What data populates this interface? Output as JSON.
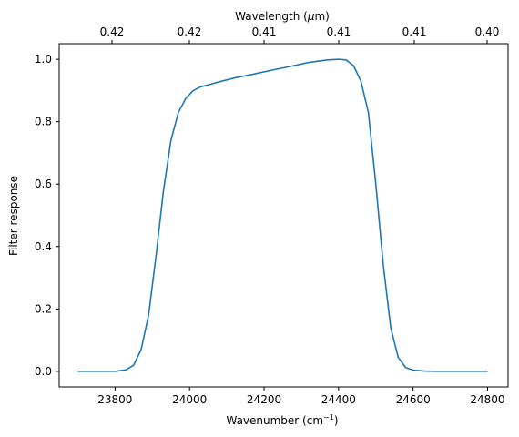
{
  "chart_data": {
    "type": "line",
    "xlabel_base": "Wavenumber (cm",
    "xlabel_sup": "−1",
    "xlabel_end": ")",
    "ylabel": "Filter response",
    "top_xlabel_base": "Wavelength (",
    "top_xlabel_mu": "μ",
    "top_xlabel_end": "m)",
    "xlim": [
      23650,
      24855
    ],
    "ylim": [
      -0.05,
      1.05
    ],
    "x_ticks": [
      23800,
      24000,
      24200,
      24400,
      24600,
      24800
    ],
    "x_tick_labels": [
      "23800",
      "24000",
      "24200",
      "24400",
      "24600",
      "24800"
    ],
    "y_ticks": [
      0.0,
      0.2,
      0.4,
      0.6,
      0.8,
      1.0
    ],
    "y_tick_labels": [
      "0.0",
      "0.2",
      "0.4",
      "0.6",
      "0.8",
      "1.0"
    ],
    "top_ticks_wavenumber": [
      23810,
      24050,
      24290,
      24530,
      24800
    ],
    "top_tick_labels": [
      "0.42",
      "0.42",
      "0.41",
      "0.41",
      "0.41",
      "0.40"
    ],
    "top_ticks_all_wavenumber": [
      23570,
      23810,
      24050,
      24290,
      24530,
      24800
    ],
    "grid": false,
    "line_color": "#1f77b4",
    "series": [
      {
        "x": [
          23700,
          23750,
          23800,
          23830,
          23850,
          23870,
          23890,
          23910,
          23930,
          23950,
          23970,
          23990,
          24010,
          24030,
          24050,
          24080,
          24120,
          24170,
          24220,
          24270,
          24320,
          24370,
          24400,
          24420,
          24440,
          24460,
          24480,
          24500,
          24520,
          24540,
          24560,
          24580,
          24600,
          24630,
          24660,
          24700,
          24750,
          24800
        ],
        "y": [
          0.0,
          0.0,
          0.0,
          0.005,
          0.02,
          0.07,
          0.18,
          0.37,
          0.58,
          0.74,
          0.83,
          0.875,
          0.9,
          0.912,
          0.918,
          0.928,
          0.94,
          0.952,
          0.965,
          0.977,
          0.99,
          0.998,
          1.0,
          0.998,
          0.98,
          0.93,
          0.83,
          0.6,
          0.34,
          0.14,
          0.045,
          0.012,
          0.004,
          0.001,
          0.0,
          0.0,
          0.0,
          0.0
        ]
      }
    ]
  }
}
